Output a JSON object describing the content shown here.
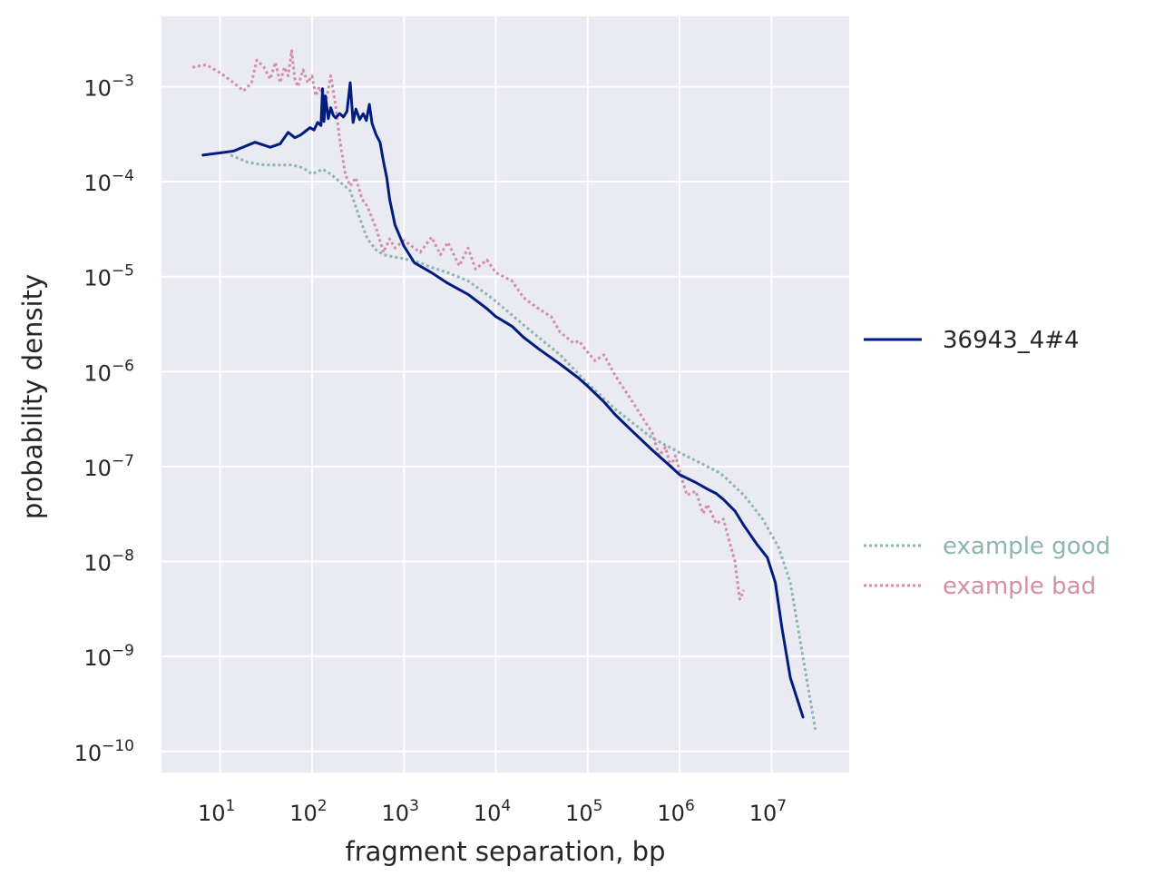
{
  "chart_data": {
    "type": "line",
    "xlabel": "fragment separation, bp",
    "ylabel": "probability density",
    "x_scale": "log",
    "y_scale": "log",
    "xlim": [
      2.3,
      70000000
    ],
    "ylim": [
      6e-11,
      0.0055
    ],
    "grid": true,
    "legend_placement": "right",
    "x_ticks": [
      {
        "base": "10",
        "exp": "1",
        "value": 10
      },
      {
        "base": "10",
        "exp": "2",
        "value": 100
      },
      {
        "base": "10",
        "exp": "3",
        "value": 1000
      },
      {
        "base": "10",
        "exp": "4",
        "value": 10000
      },
      {
        "base": "10",
        "exp": "5",
        "value": 100000
      },
      {
        "base": "10",
        "exp": "6",
        "value": 1000000
      },
      {
        "base": "10",
        "exp": "7",
        "value": 10000000
      }
    ],
    "y_ticks": [
      {
        "base": "10",
        "exp": "−3",
        "value": 0.001
      },
      {
        "base": "10",
        "exp": "−4",
        "value": 0.0001
      },
      {
        "base": "10",
        "exp": "−5",
        "value": 1e-05
      },
      {
        "base": "10",
        "exp": "−6",
        "value": 1e-06
      },
      {
        "base": "10",
        "exp": "−7",
        "value": 1e-07
      },
      {
        "base": "10",
        "exp": "−8",
        "value": 1e-08
      },
      {
        "base": "10",
        "exp": "−9",
        "value": 1e-09
      },
      {
        "base": "10",
        "exp": "−10",
        "value": 1e-10
      }
    ],
    "series": [
      {
        "name": "36943_4#4",
        "color": "#001c7f",
        "style": "solid",
        "x": [
          6.5,
          14,
          24,
          35,
          45,
          55,
          65,
          75,
          85,
          95,
          105,
          115,
          125,
          130,
          135,
          140,
          150,
          160,
          170,
          180,
          200,
          220,
          240,
          260,
          280,
          300,
          330,
          360,
          390,
          420,
          450,
          500,
          550,
          600,
          650,
          700,
          800,
          1000,
          1300,
          2000,
          3000,
          5000,
          8000,
          10000,
          15000,
          20000,
          30000,
          50000,
          80000,
          100000,
          150000,
          200000,
          300000,
          500000,
          800000,
          1000000,
          1500000,
          2000000,
          2500000,
          3000000,
          4000000,
          5000000,
          7000000,
          9000000,
          11000000,
          13000000,
          16000000,
          22000000
        ],
        "y": [
          0.00019,
          0.00021,
          0.00026,
          0.00023,
          0.00025,
          0.00033,
          0.00029,
          0.00031,
          0.00034,
          0.00037,
          0.00035,
          0.00042,
          0.00039,
          0.00095,
          0.00043,
          0.0008,
          0.00046,
          0.0006,
          0.0005,
          0.00047,
          0.00052,
          0.00048,
          0.00055,
          0.0011,
          0.00042,
          0.00058,
          0.00045,
          0.00052,
          0.00044,
          0.00065,
          0.00041,
          0.00031,
          0.00026,
          0.00016,
          0.00011,
          6.5e-05,
          3.5e-05,
          2.1e-05,
          1.4e-05,
          1.1e-05,
          8.5e-06,
          6.5e-06,
          4.6e-06,
          3.8e-06,
          3e-06,
          2.3e-06,
          1.7e-06,
          1.2e-06,
          8.5e-07,
          7e-07,
          4.8e-07,
          3.5e-07,
          2.4e-07,
          1.5e-07,
          1e-07,
          8.2e-08,
          6.8e-08,
          5.8e-08,
          5.2e-08,
          4.5e-08,
          3.4e-08,
          2.4e-08,
          1.5e-08,
          1.1e-08,
          6e-09,
          2e-09,
          6e-10,
          2.3e-10
        ]
      },
      {
        "name": "example good",
        "color": "#8db5b0",
        "style": "dotted",
        "x": [
          13,
          20,
          30,
          45,
          60,
          80,
          100,
          130,
          160,
          200,
          260,
          320,
          400,
          500,
          600,
          800,
          1000,
          1500,
          2000,
          3000,
          5000,
          8000,
          10000,
          20000,
          50000,
          100000,
          200000,
          500000,
          1000000,
          2000000,
          2500000,
          3000000,
          5000000,
          8000000,
          12000000,
          16000000,
          30000000
        ],
        "y": [
          0.00019,
          0.00016,
          0.00015,
          0.00015,
          0.00015,
          0.00014,
          0.00012,
          0.000135,
          0.00012,
          0.0001,
          8e-05,
          4.5e-05,
          2.5e-05,
          1.9e-05,
          1.7e-05,
          1.6e-05,
          1.55e-05,
          1.4e-05,
          1.25e-05,
          1.1e-05,
          9e-06,
          6.5e-06,
          5.5e-06,
          3.1e-06,
          1.5e-06,
          7.5e-07,
          4e-07,
          2e-07,
          1.4e-07,
          1e-07,
          9e-08,
          8e-08,
          5e-08,
          2.8e-08,
          1.4e-08,
          6e-09,
          1.7e-10
        ]
      },
      {
        "name": "example bad",
        "color": "#d48fa8",
        "style": "dotted",
        "x": [
          5,
          7,
          10,
          14,
          18,
          22,
          25,
          30,
          35,
          40,
          45,
          50,
          55,
          60,
          65,
          70,
          80,
          90,
          100,
          110,
          120,
          140,
          160,
          180,
          200,
          230,
          260,
          300,
          350,
          400,
          500,
          600,
          700,
          800,
          1000,
          1500,
          2000,
          2500,
          3000,
          4000,
          5000,
          6000,
          8000,
          10000,
          15000,
          20000,
          30000,
          40000,
          50000,
          70000,
          80000,
          100000,
          120000,
          150000,
          200000,
          250000,
          300000,
          400000,
          500000,
          600000,
          700000,
          800000,
          900000,
          1000000,
          1200000,
          1500000,
          1800000,
          2000000,
          2500000,
          3000000,
          3500000,
          4000000,
          4500000,
          5000000
        ],
        "y": [
          0.0016,
          0.0017,
          0.0014,
          0.0011,
          0.0009,
          0.0011,
          0.0019,
          0.0016,
          0.0012,
          0.0018,
          0.0011,
          0.0016,
          0.0013,
          0.0024,
          0.0012,
          0.001,
          0.0015,
          0.0011,
          0.0013,
          0.0008,
          0.001,
          0.00065,
          0.0013,
          0.00065,
          0.00028,
          0.00012,
          9e-05,
          0.00011,
          6.5e-05,
          5.5e-05,
          3.2e-05,
          1.8e-05,
          2.5e-05,
          2e-05,
          2.4e-05,
          1.8e-05,
          2.6e-05,
          1.7e-05,
          2.3e-05,
          1.3e-05,
          2e-05,
          1.2e-05,
          1.5e-05,
          1.1e-05,
          9e-06,
          6e-06,
          4.5e-06,
          3.8e-06,
          2.6e-06,
          2e-06,
          2.1e-06,
          1.6e-06,
          1.3e-06,
          1.5e-06,
          9e-07,
          6.5e-07,
          5e-07,
          3.2e-07,
          2.3e-07,
          1.3e-07,
          1.6e-07,
          1e-07,
          1.3e-07,
          9e-08,
          5e-08,
          5.5e-08,
          3.2e-08,
          4e-08,
          2.5e-08,
          2.8e-08,
          1.6e-08,
          1e-08,
          4e-09,
          5e-09
        ]
      }
    ]
  }
}
